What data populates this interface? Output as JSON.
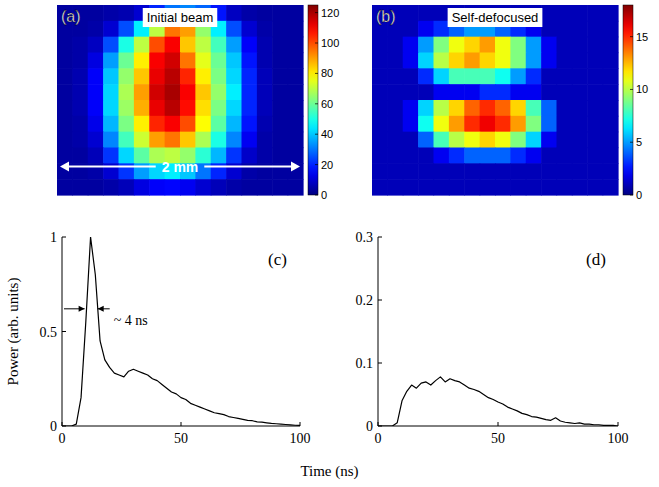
{
  "chart_data": [
    {
      "type": "heatmap",
      "panel_label": "(a)",
      "title": "Initial beam",
      "annotations": [
        "2 mm"
      ],
      "color": "jet",
      "tick_labels": false,
      "cells": [
        [
          4,
          4,
          4,
          5,
          6,
          10,
          20,
          30,
          32,
          28,
          18,
          8,
          5,
          4,
          4,
          4
        ],
        [
          4,
          4,
          5,
          10,
          25,
          45,
          70,
          95,
          90,
          65,
          45,
          25,
          10,
          5,
          4,
          4
        ],
        [
          4,
          5,
          8,
          25,
          50,
          70,
          100,
          110,
          85,
          70,
          55,
          35,
          15,
          6,
          4,
          4
        ],
        [
          4,
          5,
          12,
          35,
          60,
          80,
          110,
          115,
          95,
          75,
          60,
          40,
          18,
          6,
          4,
          4
        ],
        [
          4,
          6,
          15,
          40,
          65,
          85,
          112,
          118,
          105,
          80,
          62,
          42,
          20,
          7,
          4,
          4
        ],
        [
          4,
          6,
          15,
          42,
          68,
          90,
          115,
          120,
          110,
          85,
          65,
          45,
          20,
          7,
          4,
          4
        ],
        [
          4,
          6,
          15,
          42,
          66,
          88,
          112,
          118,
          108,
          82,
          62,
          42,
          20,
          7,
          4,
          4
        ],
        [
          4,
          5,
          13,
          38,
          62,
          80,
          105,
          110,
          100,
          78,
          58,
          38,
          18,
          6,
          4,
          4
        ],
        [
          4,
          5,
          10,
          32,
          55,
          72,
          90,
          95,
          85,
          68,
          50,
          32,
          14,
          5,
          4,
          4
        ],
        [
          4,
          4,
          7,
          22,
          42,
          58,
          68,
          70,
          65,
          52,
          38,
          22,
          9,
          5,
          4,
          4
        ],
        [
          4,
          4,
          5,
          10,
          22,
          35,
          42,
          45,
          40,
          30,
          20,
          10,
          5,
          4,
          4,
          4
        ],
        [
          4,
          4,
          4,
          5,
          7,
          12,
          15,
          16,
          14,
          10,
          7,
          5,
          4,
          4,
          4,
          4
        ]
      ],
      "colorbar": {
        "range": [
          0,
          125
        ],
        "ticks": [
          0,
          20,
          40,
          60,
          80,
          100,
          120
        ]
      }
    },
    {
      "type": "heatmap",
      "panel_label": "(b)",
      "title": "Self-defocused",
      "color": "jet",
      "tick_labels": false,
      "cells": [
        [
          1,
          1,
          1,
          1,
          1,
          1,
          1,
          1,
          1,
          1,
          1,
          1,
          1,
          1,
          1,
          1
        ],
        [
          1,
          1,
          1,
          2,
          3,
          4,
          5,
          5,
          4,
          3,
          2,
          1,
          1,
          1,
          1,
          1
        ],
        [
          1,
          1,
          2,
          5,
          9,
          11,
          12,
          13,
          11,
          9,
          5,
          2,
          1,
          1,
          1,
          1
        ],
        [
          1,
          1,
          2,
          6,
          10,
          12,
          13,
          12,
          11,
          9,
          5,
          2,
          1,
          1,
          1,
          1
        ],
        [
          1,
          1,
          1,
          3,
          6,
          8,
          8,
          8,
          7,
          5,
          3,
          1,
          1,
          1,
          1,
          1
        ],
        [
          1,
          1,
          1,
          1,
          2,
          2,
          2,
          3,
          3,
          2,
          2,
          1,
          1,
          1,
          1,
          1
        ],
        [
          1,
          1,
          2,
          6,
          10,
          12,
          14,
          15,
          14,
          12,
          8,
          4,
          1,
          1,
          1,
          1
        ],
        [
          1,
          1,
          2,
          7,
          11,
          13,
          15,
          16,
          15,
          13,
          9,
          4,
          1,
          1,
          1,
          1
        ],
        [
          1,
          1,
          1,
          4,
          8,
          10,
          11,
          12,
          11,
          9,
          6,
          2,
          1,
          1,
          1,
          1
        ],
        [
          1,
          1,
          1,
          1,
          2,
          3,
          4,
          4,
          4,
          3,
          2,
          1,
          1,
          1,
          1,
          1
        ],
        [
          1,
          1,
          1,
          1,
          1,
          1,
          1,
          1,
          1,
          1,
          1,
          1,
          1,
          1,
          1,
          1
        ],
        [
          1,
          1,
          1,
          1,
          1,
          1,
          1,
          1,
          1,
          1,
          1,
          1,
          1,
          1,
          1,
          1
        ]
      ],
      "colorbar": {
        "range": [
          0,
          18
        ],
        "ticks": [
          0,
          5,
          10,
          15
        ]
      }
    },
    {
      "type": "line",
      "panel_label": "(c)",
      "xlabel": "Time (ns)",
      "ylabel": "Power (arb. units)",
      "annotations": [
        "~ 4 ns"
      ],
      "x": [
        0,
        2,
        4,
        6,
        8,
        10,
        12,
        14,
        16,
        18,
        20,
        22,
        24,
        26,
        28,
        30,
        32,
        34,
        36,
        38,
        40,
        42,
        44,
        46,
        48,
        50,
        52,
        54,
        56,
        58,
        60,
        62,
        64,
        66,
        68,
        70,
        72,
        74,
        76,
        78,
        80,
        82,
        84,
        86,
        88,
        90,
        92,
        94,
        96,
        98,
        100
      ],
      "series": [
        {
          "color": "#000000",
          "values": [
            0,
            0,
            0,
            0.01,
            0.15,
            0.55,
            1.0,
            0.8,
            0.45,
            0.35,
            0.31,
            0.28,
            0.27,
            0.26,
            0.29,
            0.3,
            0.29,
            0.28,
            0.27,
            0.25,
            0.24,
            0.22,
            0.2,
            0.18,
            0.17,
            0.15,
            0.14,
            0.12,
            0.11,
            0.1,
            0.09,
            0.08,
            0.07,
            0.065,
            0.06,
            0.05,
            0.045,
            0.04,
            0.035,
            0.03,
            0.028,
            0.022,
            0.02,
            0.017,
            0.014,
            0.012,
            0.01,
            0.008,
            0.006,
            0.004,
            0.003
          ]
        }
      ],
      "xlim": [
        0,
        100
      ],
      "ylim": [
        0,
        1
      ],
      "xticks": [
        0,
        50,
        100
      ],
      "yticks": [
        0,
        0.5,
        1
      ]
    },
    {
      "type": "line",
      "panel_label": "(d)",
      "x": [
        0,
        2,
        4,
        6,
        8,
        10,
        12,
        14,
        16,
        18,
        20,
        22,
        24,
        26,
        28,
        30,
        32,
        34,
        36,
        38,
        40,
        42,
        44,
        46,
        48,
        50,
        52,
        54,
        56,
        58,
        60,
        62,
        64,
        66,
        68,
        70,
        72,
        74,
        76,
        78,
        80,
        82,
        84,
        86,
        88,
        90,
        92,
        94,
        96,
        98,
        100
      ],
      "series": [
        {
          "color": "#000000",
          "values": [
            0,
            0,
            0,
            0,
            0.005,
            0.04,
            0.055,
            0.065,
            0.06,
            0.068,
            0.07,
            0.065,
            0.072,
            0.078,
            0.07,
            0.075,
            0.072,
            0.07,
            0.065,
            0.06,
            0.058,
            0.055,
            0.05,
            0.045,
            0.042,
            0.038,
            0.035,
            0.03,
            0.027,
            0.024,
            0.02,
            0.018,
            0.015,
            0.014,
            0.012,
            0.01,
            0.009,
            0.013,
            0.008,
            0.006,
            0.005,
            0.004,
            0.005,
            0.003,
            0.003,
            0.002,
            0.002,
            0.001,
            0.001,
            0.001,
            0
          ]
        }
      ],
      "xlim": [
        0,
        100
      ],
      "ylim": [
        0,
        0.3
      ],
      "xticks": [
        0,
        50,
        100
      ],
      "yticks": [
        0,
        0.1,
        0.2,
        0.3
      ]
    }
  ]
}
